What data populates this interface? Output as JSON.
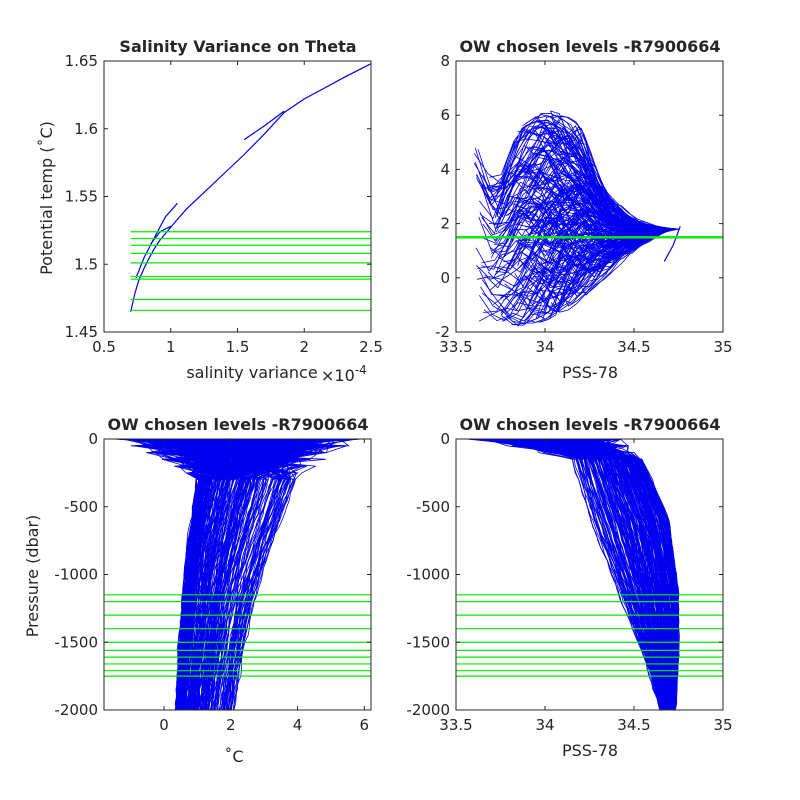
{
  "colors": {
    "profile": "#0000ee",
    "level": "#00ee00",
    "axis": "#262626",
    "background": "#ffffff"
  },
  "chart_data": [
    {
      "id": "salvar",
      "type": "line",
      "title": "Salinity Variance on Theta",
      "xlabel": "salinity variance",
      "x_exponent_label": "×10",
      "x_exponent_power": "-4",
      "ylabel": "Potential temp (˚C)",
      "xlim": [
        0.5,
        2.5
      ],
      "ylim": [
        1.45,
        1.65
      ],
      "xticks": [
        0.5,
        1,
        1.5,
        2,
        2.5
      ],
      "xticklabels": [
        "0.5",
        "1",
        "1.5",
        "2",
        "2.5"
      ],
      "yticks": [
        1.45,
        1.5,
        1.55,
        1.6,
        1.65
      ],
      "yticklabels": [
        "1.45",
        "1.5",
        "1.55",
        "1.6",
        "1.65"
      ],
      "series": [
        {
          "x": [
            0.7,
            0.73,
            0.76,
            0.8,
            0.84,
            0.88,
            0.92,
            0.98,
            1.04,
            1.12,
            1.25,
            1.4,
            1.55,
            1.7,
            1.85,
            2.0,
            2.15,
            2.3,
            2.5
          ],
          "y": [
            1.465,
            1.478,
            1.488,
            1.497,
            1.505,
            1.512,
            1.518,
            1.525,
            1.532,
            1.541,
            1.553,
            1.567,
            1.581,
            1.596,
            1.612,
            1.622,
            1.63,
            1.638,
            1.648
          ]
        },
        {
          "x": [
            0.74,
            0.8,
            0.88,
            0.96,
            1.05
          ],
          "y": [
            1.49,
            1.505,
            1.52,
            1.535,
            1.545
          ]
        },
        {
          "x": [
            0.85,
            0.92,
            1.0
          ],
          "y": [
            1.515,
            1.524,
            1.528
          ]
        },
        {
          "x": [
            1.55,
            1.7,
            1.85
          ],
          "y": [
            1.592,
            1.602,
            1.613
          ]
        }
      ],
      "levels": [
        1.466,
        1.474,
        1.489,
        1.491,
        1.501,
        1.508,
        1.514,
        1.519,
        1.524
      ]
    },
    {
      "id": "ts",
      "type": "line",
      "title": "OW chosen levels -R7900664",
      "xlabel": "PSS-78",
      "ylabel": "",
      "xlim": [
        33.5,
        35
      ],
      "ylim": [
        -2,
        8
      ],
      "xticks": [
        33.5,
        34,
        34.5,
        35
      ],
      "xticklabels": [
        "33.5",
        "34",
        "34.5",
        "35"
      ],
      "yticks": [
        -2,
        0,
        2,
        4,
        6,
        8
      ],
      "yticklabels": [
        "-2",
        "0",
        "2",
        "4",
        "6",
        "8"
      ],
      "envelope_upper": {
        "x": [
          33.62,
          33.72,
          33.85,
          34.0,
          34.2,
          34.35,
          34.5,
          34.62,
          34.76
        ],
        "y": [
          4.8,
          3.2,
          5.5,
          6.2,
          5.9,
          3.6,
          2.6,
          2.3,
          1.9
        ]
      },
      "envelope_lower": {
        "x": [
          33.75,
          33.85,
          34.0,
          34.15,
          34.3,
          34.45,
          34.6,
          34.7,
          34.76
        ],
        "y": [
          -1.6,
          -1.8,
          -1.6,
          -1.2,
          -0.6,
          0.0,
          0.6,
          1.2,
          1.9
        ]
      },
      "levels": [
        1.47,
        1.49,
        1.5,
        1.51,
        1.52
      ]
    },
    {
      "id": "temp",
      "type": "line",
      "title": "OW chosen levels -R7900664",
      "xlabel": "˚C",
      "ylabel": "Pressure (dbar)",
      "xlim": [
        -1.8,
        6.2
      ],
      "ylim": [
        -2000,
        0
      ],
      "xticks": [
        0,
        2,
        4,
        6
      ],
      "xticklabels": [
        "0",
        "2",
        "4",
        "6"
      ],
      "yticks": [
        -2000,
        -1500,
        -1000,
        -500,
        0
      ],
      "yticklabels": [
        "-2000",
        "-1500",
        "-1000",
        "-500",
        "0"
      ],
      "band_left": {
        "x": [
          1.0,
          0.7,
          0.55,
          0.45,
          0.35
        ],
        "y": [
          -300,
          -800,
          -1200,
          -1600,
          -2000
        ]
      },
      "band_right": {
        "x": [
          4.0,
          3.2,
          2.7,
          2.35,
          2.1
        ],
        "y": [
          -300,
          -800,
          -1200,
          -1600,
          -2000
        ]
      },
      "levels": [
        -1150,
        -1200,
        -1300,
        -1400,
        -1500,
        -1560,
        -1610,
        -1660,
        -1710,
        -1750
      ]
    },
    {
      "id": "sal",
      "type": "line",
      "title": "OW chosen levels -R7900664",
      "xlabel": "PSS-78",
      "ylabel": "",
      "xlim": [
        33.5,
        35
      ],
      "ylim": [
        -2000,
        0
      ],
      "xticks": [
        33.5,
        34,
        34.5,
        35
      ],
      "xticklabels": [
        "33.5",
        "34",
        "34.5",
        "35"
      ],
      "yticks": [
        -2000,
        -1500,
        -1000,
        -500,
        0
      ],
      "yticklabels": [
        "-2000",
        "-1500",
        "-1000",
        "-500",
        "0"
      ],
      "band_left": {
        "x": [
          34.15,
          34.25,
          34.4,
          34.55,
          34.65
        ],
        "y": [
          -150,
          -600,
          -1100,
          -1600,
          -2000
        ]
      },
      "band_right": {
        "x": [
          34.55,
          34.7,
          34.75,
          34.75,
          34.73
        ],
        "y": [
          -150,
          -600,
          -1100,
          -1600,
          -2000
        ]
      },
      "levels": [
        -1150,
        -1200,
        -1300,
        -1400,
        -1500,
        -1560,
        -1610,
        -1660,
        -1710,
        -1750
      ]
    }
  ]
}
